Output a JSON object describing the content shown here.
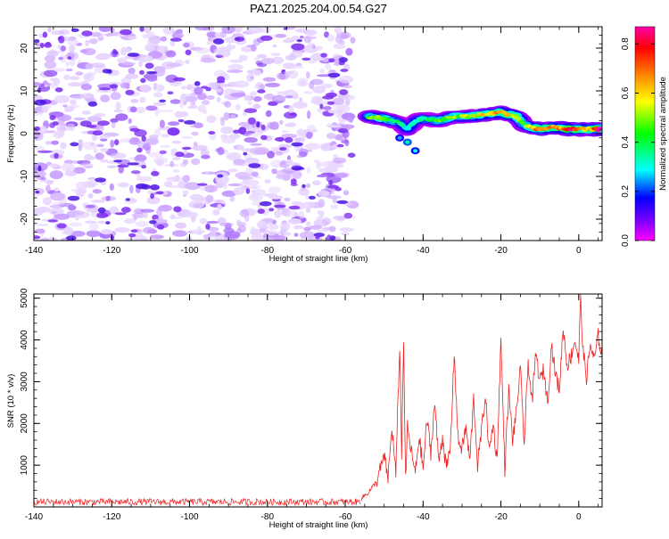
{
  "figure_title": "PAZ1.2025.204.00.54.G27",
  "chart_data": [
    {
      "type": "heatmap",
      "xlabel": "Height of straight line (km)",
      "ylabel": "Frequency (Hz)",
      "xlim": [
        -140,
        6
      ],
      "ylim": [
        -25,
        25
      ],
      "x_ticks": [
        "-140",
        "-120",
        "-100",
        "-80",
        "-60",
        "-40",
        "-20",
        "0"
      ],
      "y_ticks": [
        "-20",
        "-10",
        "0",
        "10",
        "20"
      ],
      "colorbar": {
        "label": "Normalized spectral amplitude",
        "range": [
          0,
          0.87
        ],
        "ticks": [
          "0.0",
          "0.2",
          "0.4",
          "0.6",
          "0.8"
        ],
        "colormap": [
          "#ff00ff",
          "#7f00ff",
          "#0000ff",
          "#00ffff",
          "#00ff00",
          "#ffff00",
          "#ff7f00",
          "#ff0000",
          "#ff00ff"
        ]
      },
      "noise_region": {
        "x_range": [
          -140,
          -58
        ],
        "freq_range": [
          -25,
          25
        ],
        "amplitude_range": [
          0.0,
          0.15
        ]
      },
      "signal_ridge": [
        {
          "x": -54,
          "freq": 4,
          "amp": 0.45
        },
        {
          "x": -50,
          "freq": 3.5,
          "amp": 0.5
        },
        {
          "x": -46,
          "freq": 2.5,
          "amp": 0.35
        },
        {
          "x": -44,
          "freq": 1,
          "amp": 0.3
        },
        {
          "x": -42,
          "freq": 3,
          "amp": 0.3
        },
        {
          "x": -40,
          "freq": 3.5,
          "amp": 0.35
        },
        {
          "x": -36,
          "freq": 3,
          "amp": 0.45
        },
        {
          "x": -32,
          "freq": 4,
          "amp": 0.5
        },
        {
          "x": -28,
          "freq": 4,
          "amp": 0.5
        },
        {
          "x": -24,
          "freq": 4.5,
          "amp": 0.6
        },
        {
          "x": -20,
          "freq": 5,
          "amp": 0.65
        },
        {
          "x": -16,
          "freq": 4,
          "amp": 0.55
        },
        {
          "x": -14,
          "freq": 2,
          "amp": 0.45
        },
        {
          "x": -10,
          "freq": 1,
          "amp": 0.7
        },
        {
          "x": -6,
          "freq": 1.5,
          "amp": 0.6
        },
        {
          "x": -2,
          "freq": 1,
          "amp": 0.75
        },
        {
          "x": 2,
          "freq": 1,
          "amp": 0.6
        },
        {
          "x": 6,
          "freq": 1,
          "amp": 0.8
        }
      ]
    },
    {
      "type": "line",
      "xlabel": "Height of straight line (km)",
      "ylabel": "SNR (10 * v/v)",
      "xlim": [
        -140,
        6
      ],
      "ylim": [
        0,
        5100
      ],
      "x_ticks": [
        "-140",
        "-120",
        "-100",
        "-80",
        "-60",
        "-40",
        "-20",
        "0"
      ],
      "y_ticks": [
        "1000",
        "2000",
        "3000",
        "4000",
        "5000"
      ],
      "color": "#ee2222",
      "series": [
        {
          "x": [
            -140,
            -130,
            -120,
            -110,
            -100,
            -90,
            -80,
            -70,
            -60,
            -56,
            -54,
            -52,
            -50,
            -49,
            -48,
            -47,
            -46,
            -45.5,
            -45,
            -44.5,
            -44,
            -43,
            -42,
            -41,
            -40,
            -39,
            -38,
            -37,
            -36,
            -35,
            -34,
            -33,
            -32,
            -31,
            -30,
            -29,
            -28,
            -27,
            -26,
            -25,
            -24,
            -23,
            -22,
            -21,
            -20,
            -19,
            -18,
            -17,
            -16,
            -15,
            -14,
            -13,
            -12,
            -11,
            -10,
            -9,
            -8,
            -7,
            -6,
            -5,
            -4,
            -3,
            -2,
            -1,
            0,
            0.5,
            1,
            2,
            3,
            4,
            5,
            6
          ],
          "y": [
            120,
            110,
            120,
            110,
            130,
            110,
            130,
            120,
            140,
            200,
            350,
            600,
            1200,
            700,
            1900,
            800,
            3900,
            1200,
            4100,
            600,
            1900,
            1300,
            800,
            1700,
            900,
            2100,
            1300,
            2500,
            1100,
            1700,
            900,
            1400,
            3700,
            1600,
            1400,
            1900,
            1100,
            2600,
            1000,
            1800,
            2700,
            1300,
            2000,
            1100,
            4000,
            900,
            2800,
            1600,
            2300,
            3300,
            1500,
            3500,
            2500,
            3700,
            3000,
            3300,
            2500,
            3900,
            3200,
            2800,
            4300,
            3400,
            3600,
            4000,
            3500,
            5100,
            3800,
            3100,
            3900,
            3500,
            4100,
            3600
          ]
        }
      ]
    }
  ]
}
